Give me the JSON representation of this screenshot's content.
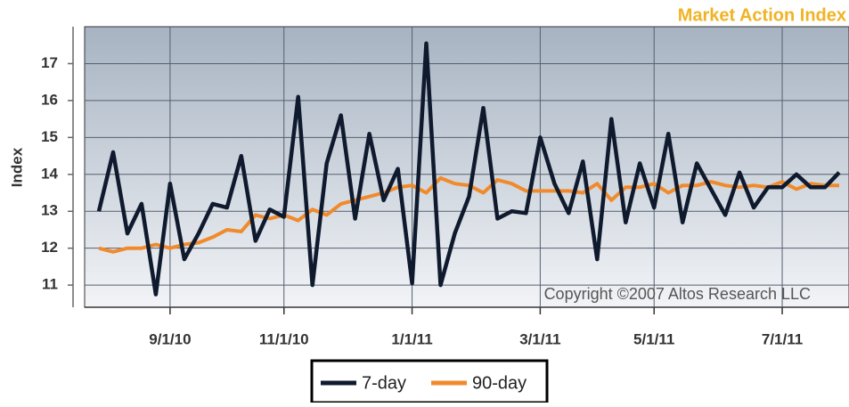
{
  "chart_data": {
    "type": "line",
    "title": "Market Action Index",
    "y_label": "Index",
    "annotation": "Copyright ©2007 Altos Research LLC",
    "categories": [
      null,
      null,
      null,
      null,
      null,
      "9/1/10",
      null,
      null,
      null,
      null,
      null,
      null,
      null,
      "11/1/10",
      null,
      null,
      null,
      null,
      null,
      null,
      null,
      null,
      "1/1/11",
      null,
      null,
      null,
      null,
      null,
      null,
      null,
      null,
      "3/1/11",
      null,
      null,
      null,
      null,
      null,
      null,
      null,
      "5/1/11",
      null,
      null,
      null,
      null,
      null,
      null,
      null,
      null,
      "7/1/11",
      null,
      null,
      null,
      null
    ],
    "series": [
      {
        "name": "7-day",
        "color": "#0f1a2e",
        "values": [
          13.0,
          14.6,
          12.4,
          13.2,
          10.75,
          13.75,
          11.7,
          12.4,
          13.2,
          13.1,
          14.5,
          12.2,
          13.05,
          12.85,
          16.1,
          11.0,
          14.3,
          15.6,
          12.8,
          15.1,
          13.3,
          14.15,
          11.05,
          17.55,
          11.0,
          12.4,
          13.4,
          15.8,
          12.8,
          13.0,
          12.95,
          15.0,
          13.75,
          12.95,
          14.35,
          11.7,
          15.5,
          12.7,
          14.3,
          13.1,
          15.1,
          12.7,
          14.3,
          13.6,
          12.9,
          14.05,
          13.1,
          13.65,
          13.65,
          14.0,
          13.65,
          13.65,
          14.05
        ]
      },
      {
        "name": "90-day",
        "color": "#f08a2c",
        "values": [
          12.0,
          11.9,
          12.0,
          12.0,
          12.1,
          12.0,
          12.1,
          12.15,
          12.3,
          12.5,
          12.45,
          12.9,
          12.8,
          12.9,
          12.75,
          13.05,
          12.9,
          13.2,
          13.3,
          13.4,
          13.5,
          13.65,
          13.7,
          13.5,
          13.9,
          13.75,
          13.7,
          13.5,
          13.85,
          13.75,
          13.55,
          13.55,
          13.55,
          13.55,
          13.5,
          13.75,
          13.3,
          13.65,
          13.65,
          13.75,
          13.5,
          13.7,
          13.7,
          13.8,
          13.7,
          13.65,
          13.7,
          13.65,
          13.8,
          13.6,
          13.75,
          13.7,
          13.7
        ]
      }
    ],
    "ylim": [
      10.4,
      18
    ],
    "yticks": [
      11,
      12,
      13,
      14,
      15,
      16,
      17
    ],
    "grid": true
  }
}
